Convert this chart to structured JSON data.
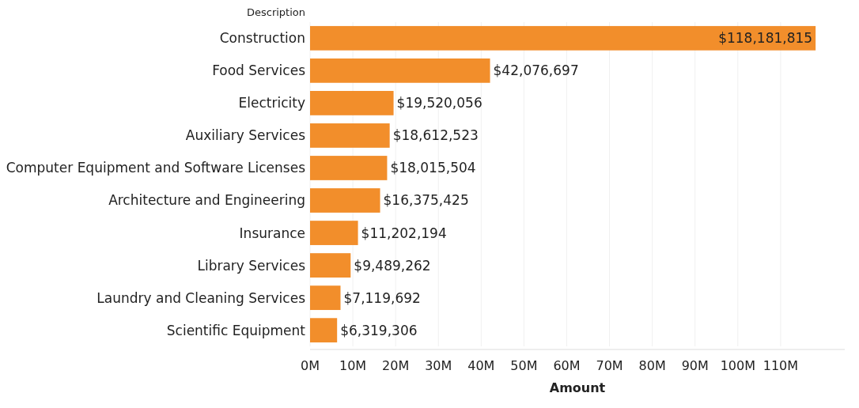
{
  "chart_data": {
    "type": "bar",
    "orientation": "horizontal",
    "ylabel": "Description",
    "xlabel": "Amount",
    "categories": [
      "Construction",
      "Food Services",
      "Electricity",
      "Auxiliary Services",
      "Computer Equipment and Software Licenses",
      "Architecture and Engineering",
      "Insurance",
      "Library Services",
      "Laundry and Cleaning Services",
      "Scientific Equipment"
    ],
    "values": [
      118181815,
      42076697,
      19520056,
      18612523,
      18015504,
      16375425,
      11202194,
      9489262,
      7119692,
      6319306
    ],
    "value_labels": [
      "$118,181,815",
      "$42,076,697",
      "$19,520,056",
      "$18,612,523",
      "$18,015,504",
      "$16,375,425",
      "$11,202,194",
      "$9,489,262",
      "$7,119,692",
      "$6,319,306"
    ],
    "color": "#f28e2b",
    "xlim": [
      0,
      125000000
    ],
    "xticks": [
      {
        "value": 0,
        "label": "0M"
      },
      {
        "value": 10000000,
        "label": "10M"
      },
      {
        "value": 20000000,
        "label": "20M"
      },
      {
        "value": 30000000,
        "label": "30M"
      },
      {
        "value": 40000000,
        "label": "40M"
      },
      {
        "value": 50000000,
        "label": "50M"
      },
      {
        "value": 60000000,
        "label": "60M"
      },
      {
        "value": 70000000,
        "label": "70M"
      },
      {
        "value": 80000000,
        "label": "80M"
      },
      {
        "value": 90000000,
        "label": "90M"
      },
      {
        "value": 100000000,
        "label": "100M"
      },
      {
        "value": 110000000,
        "label": "110M"
      }
    ],
    "grid": "x"
  }
}
